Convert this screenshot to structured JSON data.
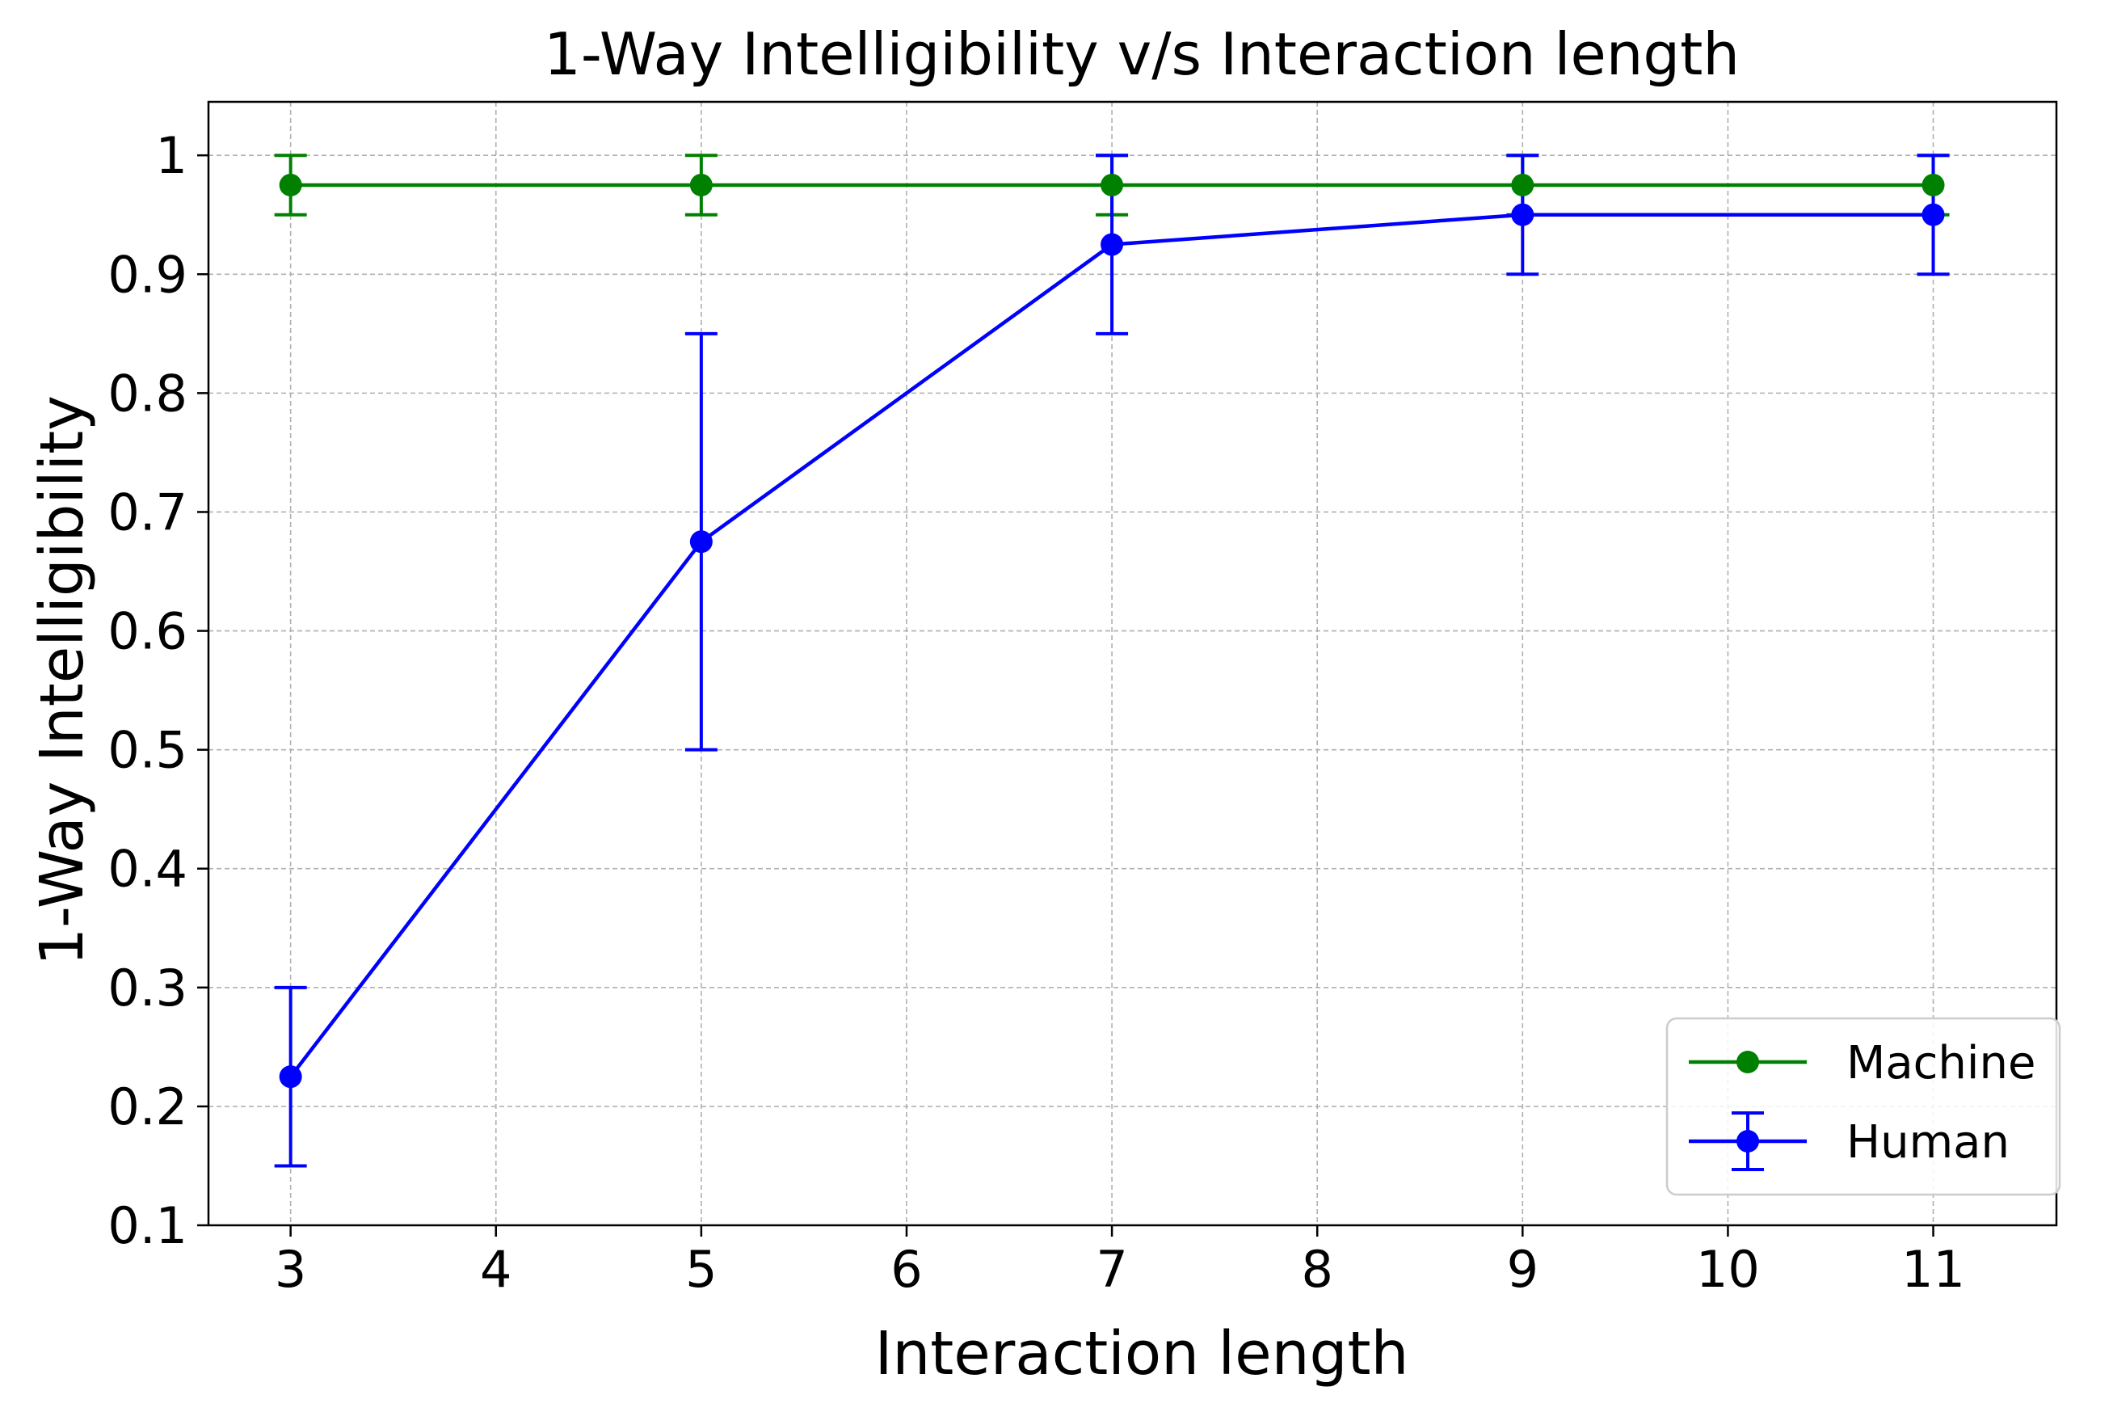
{
  "chart_data": {
    "type": "line",
    "title": "1-Way Intelligibility v/s Interaction length",
    "xlabel": "Interaction length",
    "ylabel": "1-Way Intelligibility",
    "xlim": [
      2.6,
      11.6
    ],
    "ylim": [
      0.1,
      1.045
    ],
    "xticks": [
      3,
      4,
      5,
      6,
      7,
      8,
      9,
      10,
      11
    ],
    "yticks": [
      0.1,
      0.2,
      0.3,
      0.4,
      0.5,
      0.6,
      0.7,
      0.8,
      0.9,
      1.0
    ],
    "ytick_labels": [
      "0.1",
      "0.2",
      "0.3",
      "0.4",
      "0.5",
      "0.6",
      "0.7",
      "0.8",
      "0.9",
      "1"
    ],
    "grid": true,
    "legend_position": "lower-right",
    "series": [
      {
        "name": "Machine",
        "color": "#008000",
        "x": [
          3,
          5,
          7,
          9,
          11
        ],
        "y": [
          0.975,
          0.975,
          0.975,
          0.975,
          0.975
        ],
        "err_low": [
          0.95,
          0.95,
          0.95,
          0.95,
          0.95
        ],
        "err_high": [
          1.0,
          1.0,
          1.0,
          1.0,
          1.0
        ]
      },
      {
        "name": "Human",
        "color": "#0000ff",
        "x": [
          3,
          5,
          7,
          9,
          11
        ],
        "y": [
          0.225,
          0.675,
          0.925,
          0.95,
          0.95
        ],
        "err_low": [
          0.15,
          0.5,
          0.85,
          0.9,
          0.9
        ],
        "err_high": [
          0.3,
          0.85,
          1.0,
          1.0,
          1.0
        ]
      }
    ]
  }
}
